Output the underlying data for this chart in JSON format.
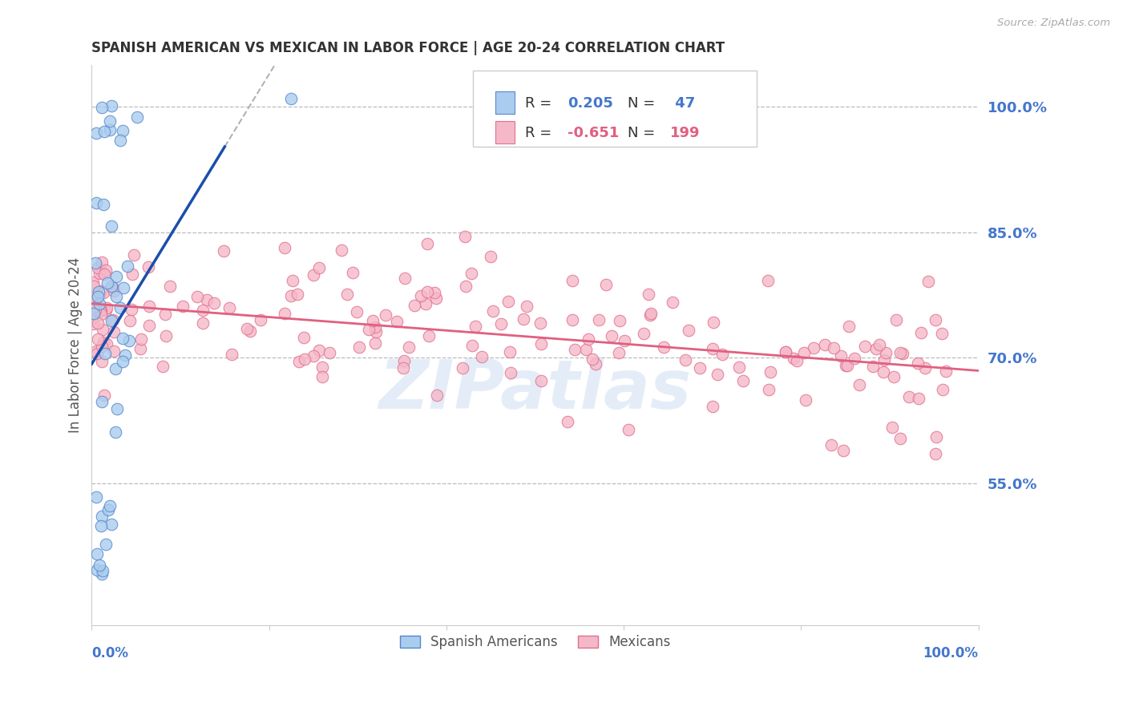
{
  "title": "SPANISH AMERICAN VS MEXICAN IN LABOR FORCE | AGE 20-24 CORRELATION CHART",
  "source": "Source: ZipAtlas.com",
  "ylabel": "In Labor Force | Age 20-24",
  "y_ticks": [
    0.55,
    0.7,
    0.85,
    1.0
  ],
  "y_tick_labels": [
    "55.0%",
    "70.0%",
    "85.0%",
    "100.0%"
  ],
  "x_range": [
    0.0,
    1.0
  ],
  "y_range": [
    0.38,
    1.05
  ],
  "blue_color": "#AACCEE",
  "pink_color": "#F5B8C8",
  "blue_edge_color": "#5588CC",
  "pink_edge_color": "#E07090",
  "blue_line_color": "#1A4FAA",
  "pink_line_color": "#E06080",
  "blue_r": 0.205,
  "blue_n": 47,
  "pink_r": -0.651,
  "pink_n": 199,
  "watermark": "ZIPatlas",
  "title_fontsize": 12,
  "axis_label_color": "#4477CC",
  "grid_color": "#BBBBBB",
  "background_color": "#FFFFFF",
  "legend_r_color": "#333333",
  "legend_val_blue": "#4477CC",
  "legend_val_pink": "#E06080"
}
